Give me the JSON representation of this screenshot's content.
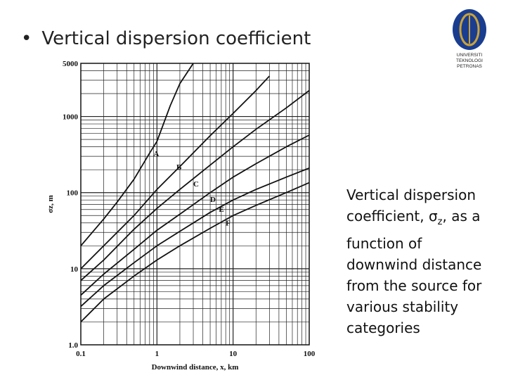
{
  "slide": {
    "bullet": "Vertical dispersion coefficient",
    "caption_parts": [
      "Vertical dispersion coefficient, ",
      "σ",
      "z",
      ", as a function of downwind distance from the source for various stability categories"
    ],
    "logo_text": [
      "UNIVERSITI",
      "TEKNOLOGI",
      "PETRONAS"
    ],
    "logo_colors": {
      "outer": "#1a3d8f",
      "inner": "#c9a23a"
    }
  },
  "chart_data": {
    "type": "line",
    "xscale": "log",
    "yscale": "log",
    "xlim": [
      0.1,
      100
    ],
    "ylim": [
      1.0,
      5000
    ],
    "xlabel": "Downwind distance, x, km",
    "ylabel": "σz, m",
    "xticks": [
      {
        "v": 0.1,
        "label": "0.1"
      },
      {
        "v": 1,
        "label": "1"
      },
      {
        "v": 10,
        "label": "10"
      },
      {
        "v": 100,
        "label": "100"
      }
    ],
    "yticks": [
      {
        "v": 1,
        "label": "1.0"
      },
      {
        "v": 10,
        "label": "10"
      },
      {
        "v": 100,
        "label": "100"
      },
      {
        "v": 1000,
        "label": "1000"
      },
      {
        "v": 5000,
        "label": "5000"
      }
    ],
    "grid": true,
    "series": [
      {
        "name": "A",
        "x": [
          0.1,
          0.2,
          0.3,
          0.5,
          0.8,
          1.0,
          1.5,
          2.0,
          3.0
        ],
        "y": [
          20,
          45,
          75,
          150,
          330,
          470,
          1400,
          2700,
          5000
        ],
        "label_at": [
          0.9,
          300
        ]
      },
      {
        "name": "B",
        "x": [
          0.1,
          0.2,
          0.5,
          1,
          2,
          5,
          10,
          20,
          30
        ],
        "y": [
          10,
          20,
          50,
          110,
          220,
          560,
          1100,
          2200,
          3400
        ],
        "label_at": [
          1.8,
          200
        ]
      },
      {
        "name": "C",
        "x": [
          0.1,
          0.2,
          0.5,
          1,
          2,
          5,
          10,
          20,
          50,
          100
        ],
        "y": [
          7,
          13,
          33,
          62,
          110,
          230,
          400,
          680,
          1300,
          2200
        ],
        "label_at": [
          3.0,
          120
        ]
      },
      {
        "name": "D",
        "x": [
          0.1,
          0.2,
          0.5,
          1,
          2,
          5,
          10,
          20,
          50,
          100
        ],
        "y": [
          4.5,
          8.5,
          18,
          32,
          52,
          100,
          160,
          240,
          400,
          570
        ],
        "label_at": [
          5.0,
          75
        ]
      },
      {
        "name": "E",
        "x": [
          0.1,
          0.2,
          0.5,
          1,
          2,
          5,
          10,
          20,
          50,
          100
        ],
        "y": [
          3.2,
          6,
          12,
          20,
          31,
          55,
          80,
          110,
          160,
          210
        ],
        "label_at": [
          6.5,
          56
        ]
      },
      {
        "name": "F",
        "x": [
          0.1,
          0.2,
          0.5,
          1,
          2,
          5,
          10,
          20,
          50,
          100
        ],
        "y": [
          2,
          4,
          8,
          13,
          20,
          34,
          50,
          68,
          100,
          135
        ],
        "label_at": [
          8.0,
          37
        ]
      }
    ]
  }
}
